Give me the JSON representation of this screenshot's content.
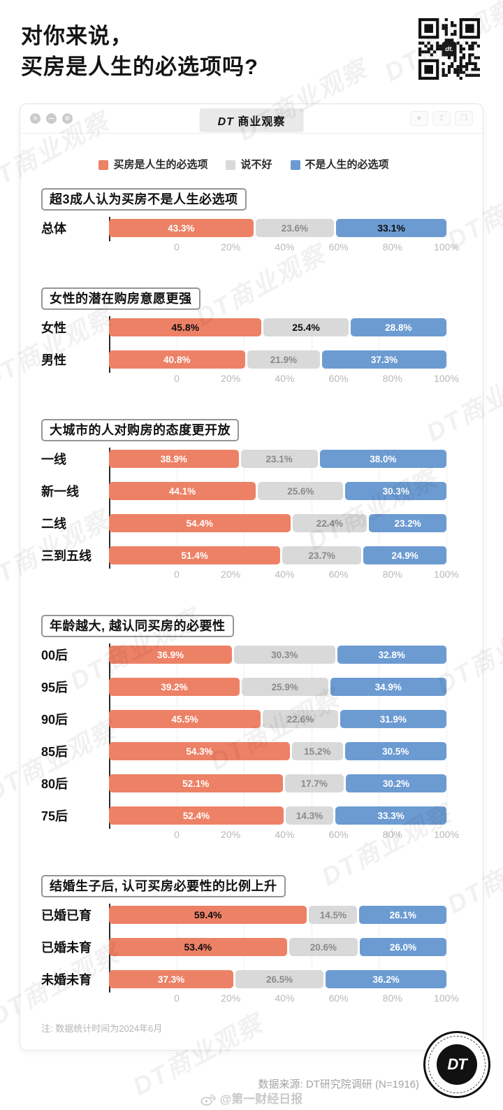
{
  "page": {
    "title_line1": "对你来说，",
    "title_line2": "买房是人生的必选项吗?",
    "watermark": "DT商业观察"
  },
  "window": {
    "titlebar_logo": "DT",
    "titlebar_title": "商业观察",
    "controls_left": [
      {
        "name": "close-icon",
        "glyph": "✕"
      },
      {
        "name": "minimize-icon",
        "glyph": "—"
      },
      {
        "name": "block-icon",
        "glyph": "⊘"
      }
    ],
    "controls_right": [
      {
        "name": "record-icon",
        "glyph": "●"
      },
      {
        "name": "share-icon",
        "glyph": "↥"
      },
      {
        "name": "copy-icon",
        "glyph": "❐"
      }
    ]
  },
  "legend": {
    "items": [
      {
        "label": "买房是人生的必选项",
        "color": "#ED8166"
      },
      {
        "label": "说不好",
        "color": "#D9D9D9"
      },
      {
        "label": "不是人生的必选项",
        "color": "#6C9BD2"
      }
    ]
  },
  "axis_ticks": [
    "0",
    "20%",
    "40%",
    "60%",
    "80%",
    "100%"
  ],
  "sections": [
    {
      "header": "超3成人认为买房不是人生必选项",
      "chart": 0
    },
    {
      "header": "女性的潜在购房意愿更强",
      "chart": 1
    },
    {
      "header": "大城市的人对购房的态度更开放",
      "chart": 2
    },
    {
      "header": "年龄越大, 越认同买房的必要性",
      "chart": 3
    },
    {
      "header": "结婚生子后, 认可买房必要性的比例上升",
      "chart": 4
    }
  ],
  "chart_data": [
    {
      "type": "bar",
      "stacked": true,
      "orientation": "horizontal",
      "title": "超3成人认为买房不是人生必选项",
      "categories": [
        "总体"
      ],
      "series": [
        {
          "name": "买房是人生的必选项",
          "color": "#ED8166",
          "values": [
            43.3
          ]
        },
        {
          "name": "说不好",
          "color": "#D9D9D9",
          "values": [
            23.6
          ]
        },
        {
          "name": "不是人生的必选项",
          "color": "#6C9BD2",
          "values": [
            33.1
          ]
        }
      ],
      "bold_cells": [
        [
          0,
          2
        ]
      ],
      "xlim": [
        0,
        100
      ],
      "x_ticks": [
        "0",
        "20%",
        "40%",
        "60%",
        "80%",
        "100%"
      ],
      "grid": true,
      "legend_position": "top"
    },
    {
      "type": "bar",
      "stacked": true,
      "orientation": "horizontal",
      "title": "女性的潜在购房意愿更强",
      "categories": [
        "女性",
        "男性"
      ],
      "series": [
        {
          "name": "买房是人生的必选项",
          "color": "#ED8166",
          "values": [
            45.8,
            40.8
          ]
        },
        {
          "name": "说不好",
          "color": "#D9D9D9",
          "values": [
            25.4,
            21.9
          ]
        },
        {
          "name": "不是人生的必选项",
          "color": "#6C9BD2",
          "values": [
            28.8,
            37.3
          ]
        }
      ],
      "bold_cells": [
        [
          0,
          0
        ],
        [
          0,
          1
        ]
      ],
      "xlim": [
        0,
        100
      ],
      "x_ticks": [
        "0",
        "20%",
        "40%",
        "60%",
        "80%",
        "100%"
      ],
      "grid": true
    },
    {
      "type": "bar",
      "stacked": true,
      "orientation": "horizontal",
      "title": "大城市的人对购房的态度更开放",
      "categories": [
        "一线",
        "新一线",
        "二线",
        "三到五线"
      ],
      "series": [
        {
          "name": "买房是人生的必选项",
          "color": "#ED8166",
          "values": [
            38.9,
            44.1,
            54.4,
            51.4
          ]
        },
        {
          "name": "说不好",
          "color": "#D9D9D9",
          "values": [
            23.1,
            25.6,
            22.4,
            23.7
          ]
        },
        {
          "name": "不是人生的必选项",
          "color": "#6C9BD2",
          "values": [
            38.0,
            30.3,
            23.2,
            24.9
          ]
        }
      ],
      "bold_cells": [],
      "xlim": [
        0,
        100
      ],
      "x_ticks": [
        "0",
        "20%",
        "40%",
        "60%",
        "80%",
        "100%"
      ],
      "grid": true
    },
    {
      "type": "bar",
      "stacked": true,
      "orientation": "horizontal",
      "title": "年龄越大, 越认同买房的必要性",
      "categories": [
        "00后",
        "95后",
        "90后",
        "85后",
        "80后",
        "75后"
      ],
      "series": [
        {
          "name": "买房是人生的必选项",
          "color": "#ED8166",
          "values": [
            36.9,
            39.2,
            45.5,
            54.3,
            52.1,
            52.4
          ]
        },
        {
          "name": "说不好",
          "color": "#D9D9D9",
          "values": [
            30.3,
            25.9,
            22.6,
            15.2,
            17.7,
            14.3
          ]
        },
        {
          "name": "不是人生的必选项",
          "color": "#6C9BD2",
          "values": [
            32.8,
            34.9,
            31.9,
            30.5,
            30.2,
            33.3
          ]
        }
      ],
      "bold_cells": [],
      "xlim": [
        0,
        100
      ],
      "x_ticks": [
        "0",
        "20%",
        "40%",
        "60%",
        "80%",
        "100%"
      ],
      "grid": true
    },
    {
      "type": "bar",
      "stacked": true,
      "orientation": "horizontal",
      "title": "结婚生子后, 认可买房必要性的比例上升",
      "categories": [
        "已婚已育",
        "已婚未育",
        "未婚未育"
      ],
      "series": [
        {
          "name": "买房是人生的必选项",
          "color": "#ED8166",
          "values": [
            59.4,
            53.4,
            37.3
          ]
        },
        {
          "name": "说不好",
          "color": "#D9D9D9",
          "values": [
            14.5,
            20.6,
            26.5
          ]
        },
        {
          "name": "不是人生的必选项",
          "color": "#6C9BD2",
          "values": [
            26.1,
            26.0,
            36.2
          ]
        }
      ],
      "bold_cells": [
        [
          0,
          0
        ],
        [
          1,
          0
        ]
      ],
      "xlim": [
        0,
        100
      ],
      "x_ticks": [
        "0",
        "20%",
        "40%",
        "60%",
        "80%",
        "100%"
      ],
      "grid": true
    }
  ],
  "note": "注: 数据统计时间为2024年6月",
  "footer": {
    "source": "数据来源: DT研究院调研 (N=1916)",
    "weibo_handle": "@第一财经日报",
    "logo_text": "DT"
  }
}
